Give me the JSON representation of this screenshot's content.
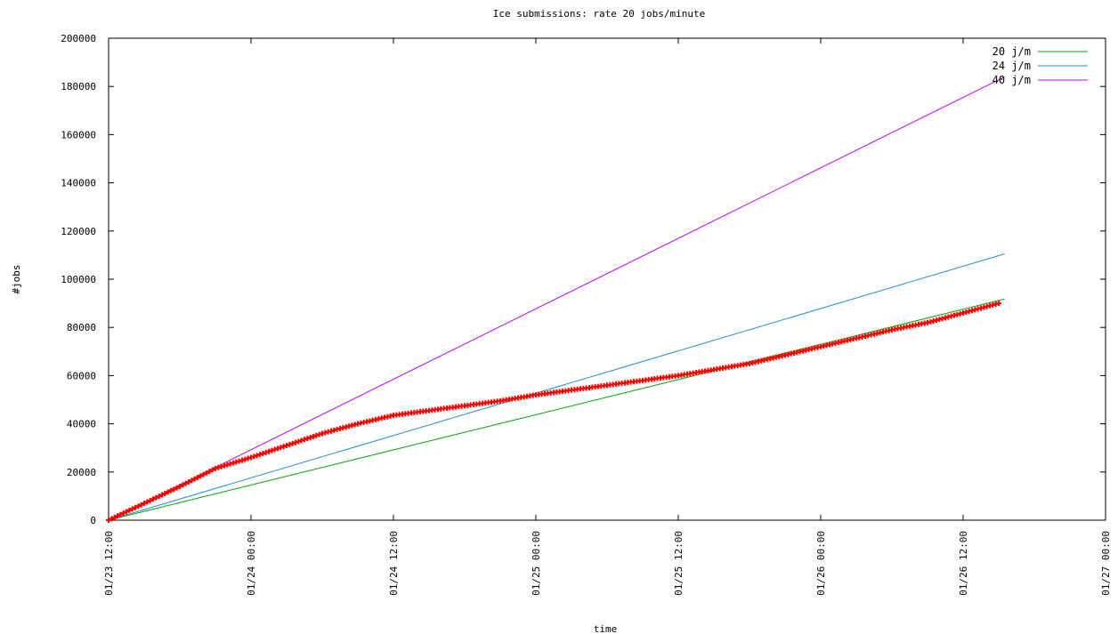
{
  "chart_data": {
    "type": "line",
    "title": "Ice submissions: rate 20 jobs/minute",
    "xlabel": "time",
    "ylabel": "#jobs",
    "x_ticks": [
      "01/23 12:00",
      "01/24 00:00",
      "01/24 12:00",
      "01/25 00:00",
      "01/25 12:00",
      "01/26 00:00",
      "01/26 12:00",
      "01/27 00:00"
    ],
    "xlim": [
      "01/23 12:00",
      "01/27 00:00"
    ],
    "ylim": [
      0,
      200000
    ],
    "y_ticks": [
      0,
      20000,
      40000,
      60000,
      80000,
      100000,
      120000,
      140000,
      160000,
      180000,
      200000
    ],
    "grid": false,
    "legend_position": "top-right",
    "series": [
      {
        "name": "20 j/m",
        "style": "line",
        "color": "#00a000",
        "points": [
          [
            "01/23 12:00",
            0
          ],
          [
            "01/26 15:30",
            91800
          ]
        ]
      },
      {
        "name": "24 j/m",
        "style": "line",
        "color": "#1e8fd8",
        "points": [
          [
            "01/23 12:00",
            0
          ],
          [
            "01/26 15:30",
            110500
          ]
        ]
      },
      {
        "name": "40 j/m",
        "style": "line",
        "color": "#c000ff",
        "points": [
          [
            "01/23 12:00",
            0
          ],
          [
            "01/26 15:30",
            184000
          ]
        ]
      },
      {
        "name": "",
        "style": "points",
        "color": "#ff0000",
        "points": [
          [
            "01/23 12:00",
            0
          ],
          [
            "01/23 15:00",
            7000
          ],
          [
            "01/23 18:00",
            14000
          ],
          [
            "01/23 21:00",
            21500
          ],
          [
            "01/24 00:00",
            26000
          ],
          [
            "01/24 03:00",
            31000
          ],
          [
            "01/24 06:00",
            36000
          ],
          [
            "01/24 09:00",
            40000
          ],
          [
            "01/24 12:00",
            43500
          ],
          [
            "01/24 15:00",
            45500
          ],
          [
            "01/24 18:00",
            47500
          ],
          [
            "01/24 21:00",
            49500
          ],
          [
            "01/25 00:00",
            52000
          ],
          [
            "01/25 03:00",
            54000
          ],
          [
            "01/25 06:00",
            56000
          ],
          [
            "01/25 09:00",
            58000
          ],
          [
            "01/25 12:00",
            60000
          ],
          [
            "01/25 15:00",
            62500
          ],
          [
            "01/25 18:00",
            65000
          ],
          [
            "01/25 21:00",
            68500
          ],
          [
            "01/26 00:00",
            72000
          ],
          [
            "01/26 03:00",
            75500
          ],
          [
            "01/26 06:00",
            79000
          ],
          [
            "01/26 09:00",
            82000
          ],
          [
            "01/26 12:00",
            86000
          ],
          [
            "01/26 15:00",
            90000
          ]
        ]
      }
    ]
  }
}
